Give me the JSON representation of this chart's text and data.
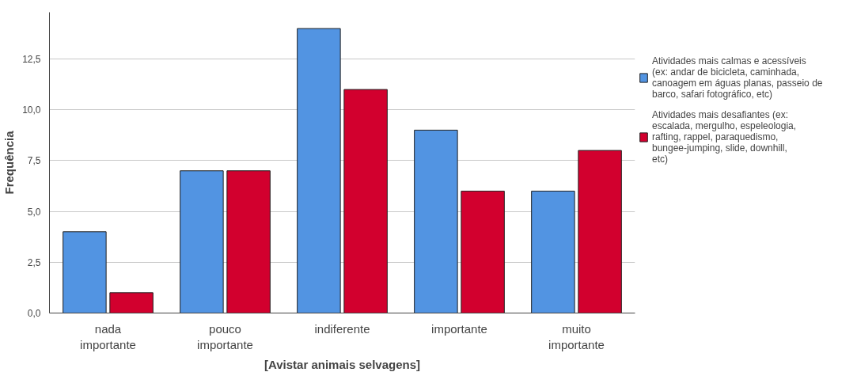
{
  "chart_data": {
    "type": "bar",
    "xlabel": "[Avistar animais selvagens]",
    "ylabel": "Frequência",
    "categories": [
      "nada importante",
      "pouco importante",
      "indiferente",
      "importante",
      "muito importante"
    ],
    "series": [
      {
        "name": "Atividades mais calmas e acessíveis (ex: andar de bicicleta, caminhada, canoagem em águas planas, passeio de barco, safari fotográfico, etc)",
        "color": "#5294e2",
        "values": [
          4,
          7,
          14,
          9,
          6
        ]
      },
      {
        "name": "Atividades mais desafiantes (ex: escalada, mergulho, espeleologia, rafting, rappel, paraquedismo, bungee-jumping, slide, downhill, etc)",
        "color": "#d2002e",
        "values": [
          1,
          7,
          11,
          6,
          8
        ]
      }
    ],
    "ylim": [
      0,
      14.8
    ],
    "yticks": [
      {
        "value": 0,
        "label": "0,0"
      },
      {
        "value": 2.5,
        "label": "2,5"
      },
      {
        "value": 5,
        "label": "5,0"
      },
      {
        "value": 7.5,
        "label": "7,5"
      },
      {
        "value": 10,
        "label": "10,0"
      },
      {
        "value": 12.5,
        "label": "12,5"
      }
    ],
    "grid": "y",
    "legend": "right"
  }
}
